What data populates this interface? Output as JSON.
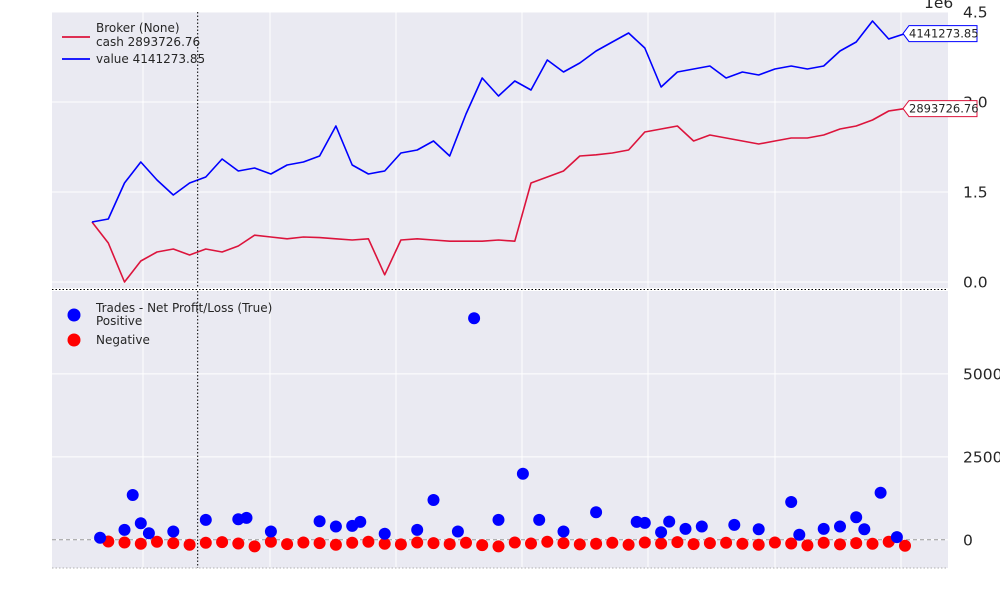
{
  "chart_data": [
    {
      "type": "line",
      "title": "",
      "legend": {
        "title": "Broker (None)",
        "placement": "top-left",
        "entries": [
          {
            "label": "cash 2893726.76",
            "color": "#dc143c"
          },
          {
            "label": "value 4141273.85",
            "color": "#0000ff"
          }
        ]
      },
      "y_multiplier": "1e6",
      "ylim": [
        -0.1,
        4.5
      ],
      "y_ticks": [
        0.0,
        1.5,
        3.0,
        4.5
      ],
      "y_tick_labels": [
        "0.0",
        "1.5",
        "3.0",
        "4.5"
      ],
      "grid": true,
      "series": [
        {
          "name": "cash",
          "color": "#dc143c",
          "x": [
            0,
            2,
            4,
            6,
            8,
            10,
            12,
            14,
            16,
            18,
            20,
            22,
            24,
            26,
            28,
            30,
            32,
            34,
            36,
            38,
            40,
            42,
            44,
            46,
            48,
            50,
            52,
            54,
            56,
            58,
            60,
            62,
            64,
            66,
            68,
            70,
            72,
            74,
            76,
            78,
            80,
            82,
            84,
            86,
            88,
            90,
            92,
            94,
            96,
            98,
            100
          ],
          "values": [
            1.0,
            0.65,
            0.0,
            0.35,
            0.5,
            0.55,
            0.45,
            0.55,
            0.5,
            0.6,
            0.78,
            0.75,
            0.72,
            0.75,
            0.74,
            0.72,
            0.7,
            0.72,
            0.12,
            0.7,
            0.72,
            0.7,
            0.68,
            0.68,
            0.68,
            0.7,
            0.68,
            1.65,
            1.75,
            1.85,
            2.1,
            2.12,
            2.15,
            2.2,
            2.5,
            2.55,
            2.6,
            2.35,
            2.45,
            2.4,
            2.35,
            2.3,
            2.35,
            2.4,
            2.4,
            2.45,
            2.55,
            2.6,
            2.7,
            2.85,
            2.89
          ]
        },
        {
          "name": "value",
          "color": "#0000ff",
          "x": [
            0,
            2,
            4,
            6,
            8,
            10,
            12,
            14,
            16,
            18,
            20,
            22,
            24,
            26,
            28,
            30,
            32,
            34,
            36,
            38,
            40,
            42,
            44,
            46,
            48,
            50,
            52,
            54,
            56,
            58,
            60,
            62,
            64,
            66,
            68,
            70,
            72,
            74,
            76,
            78,
            80,
            82,
            84,
            86,
            88,
            90,
            92,
            94,
            96,
            98,
            100
          ],
          "values": [
            1.0,
            1.05,
            1.65,
            2.0,
            1.7,
            1.45,
            1.65,
            1.75,
            2.05,
            1.85,
            1.9,
            1.8,
            1.95,
            2.0,
            2.1,
            2.6,
            1.95,
            1.8,
            1.85,
            2.15,
            2.2,
            2.35,
            2.1,
            2.8,
            3.4,
            3.1,
            3.35,
            3.2,
            3.7,
            3.5,
            3.65,
            3.85,
            4.0,
            4.15,
            3.9,
            3.25,
            3.5,
            3.55,
            3.6,
            3.4,
            3.5,
            3.45,
            3.55,
            3.6,
            3.55,
            3.6,
            3.85,
            4.0,
            4.35,
            4.05,
            4.14
          ]
        }
      ],
      "last_value_labels": [
        {
          "text": "4141273.85",
          "color": "#0000ff",
          "y": 4.14
        },
        {
          "text": "2893726.76",
          "color": "#dc143c",
          "y": 2.89
        }
      ],
      "cursor_x": 13
    },
    {
      "type": "scatter",
      "title": "",
      "legend": {
        "title": "Trades - Net Profit/Loss (True)",
        "placement": "top-left",
        "entries": [
          {
            "label": "Positive",
            "color": "#0000ff"
          },
          {
            "label": "Negative",
            "color": "#ff0000"
          }
        ]
      },
      "ylim": [
        -850,
        7500
      ],
      "y_ticks": [
        0,
        2500,
        5000
      ],
      "y_tick_labels": [
        "0",
        "2500",
        "5000"
      ],
      "grid": true,
      "zero_line": true,
      "series": [
        {
          "name": "Positive",
          "color": "#0000ff",
          "x": [
            1,
            4,
            5,
            6,
            7,
            10,
            14,
            18,
            19,
            22,
            28,
            30,
            32,
            33,
            36,
            40,
            42,
            45,
            47,
            50,
            53,
            55,
            58,
            62,
            67,
            68,
            70,
            71,
            73,
            75,
            79,
            82,
            86,
            87,
            90,
            92,
            94,
            95,
            97,
            99
          ],
          "values": [
            60,
            300,
            1350,
            500,
            200,
            250,
            600,
            620,
            660,
            250,
            560,
            400,
            420,
            540,
            180,
            300,
            1200,
            250,
            6680,
            600,
            1990,
            600,
            250,
            830,
            540,
            510,
            230,
            550,
            330,
            400,
            450,
            320,
            1140,
            150,
            330,
            400,
            680,
            320,
            1420,
            80
          ]
        },
        {
          "name": "Negative",
          "color": "#ff0000",
          "x": [
            2,
            4,
            6,
            8,
            10,
            12,
            14,
            16,
            18,
            20,
            22,
            24,
            26,
            28,
            30,
            32,
            34,
            36,
            38,
            40,
            42,
            44,
            46,
            48,
            50,
            52,
            54,
            56,
            58,
            60,
            62,
            64,
            66,
            68,
            70,
            72,
            74,
            76,
            78,
            80,
            82,
            84,
            86,
            88,
            90,
            92,
            94,
            96,
            98,
            100
          ],
          "values": [
            -50,
            -80,
            -120,
            -60,
            -100,
            -150,
            -90,
            -70,
            -110,
            -200,
            -60,
            -130,
            -80,
            -100,
            -150,
            -90,
            -60,
            -120,
            -140,
            -80,
            -100,
            -130,
            -90,
            -160,
            -200,
            -80,
            -110,
            -60,
            -100,
            -140,
            -120,
            -90,
            -150,
            -80,
            -110,
            -70,
            -130,
            -100,
            -90,
            -120,
            -150,
            -80,
            -110,
            -170,
            -90,
            -140,
            -100,
            -120,
            -60,
            -180
          ]
        }
      ],
      "cursor_x": 13
    }
  ]
}
